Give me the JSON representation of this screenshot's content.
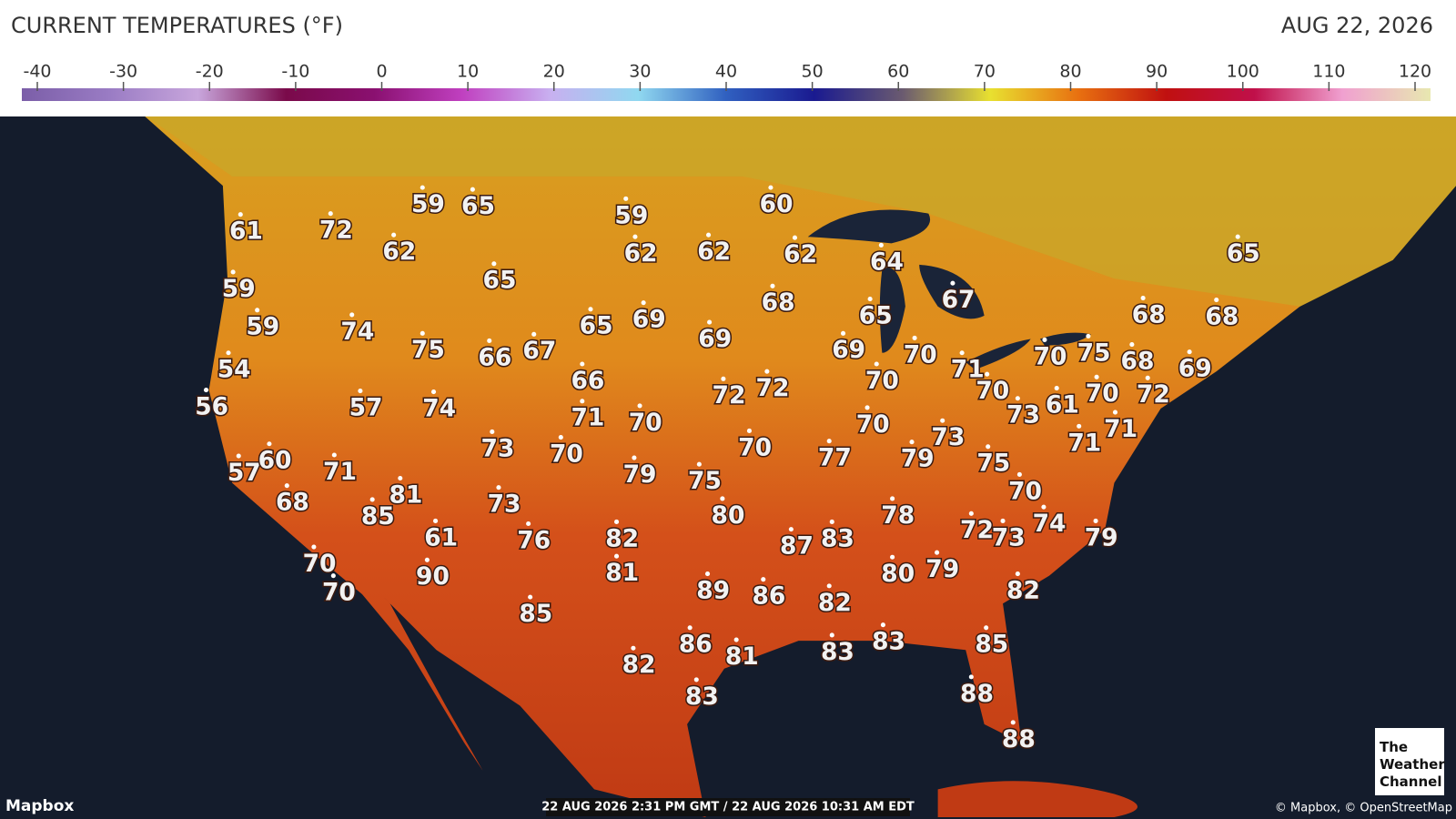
{
  "header": {
    "title": "CURRENT TEMPERATURES (°F)",
    "date": "AUG 22, 2026"
  },
  "colorbar": {
    "ticks": [
      -40,
      -30,
      -20,
      -10,
      0,
      10,
      20,
      30,
      40,
      50,
      60,
      70,
      80,
      90,
      100,
      110,
      120
    ],
    "colors": [
      "#7b5ea8",
      "#9a7cc4",
      "#c8a6dc",
      "#7a0a4a",
      "#8a1070",
      "#c040c0",
      "#c8b0f0",
      "#90d8f0",
      "#3060c0",
      "#1a1a90",
      "#6a5a70",
      "#e8e030",
      "#e87010",
      "#c01010",
      "#c0104a",
      "#f0a0d0",
      "#e8e8b0"
    ]
  },
  "stations": [
    61,
    72,
    59,
    65,
    62,
    59,
    60,
    62,
    62,
    62,
    64,
    65,
    59,
    65,
    68,
    65,
    67,
    68,
    68,
    59,
    74,
    65,
    69,
    69,
    75,
    66,
    67,
    69,
    70,
    71,
    70,
    75,
    68,
    69,
    54,
    56,
    57,
    74,
    66,
    72,
    72,
    70,
    70,
    73,
    61,
    70,
    72,
    71,
    70,
    70,
    73,
    71,
    71,
    73,
    70,
    70,
    77,
    79,
    75,
    57,
    60,
    71,
    79,
    75,
    70,
    81,
    85,
    73,
    80,
    78,
    72,
    73,
    74,
    79,
    68,
    61,
    76,
    82,
    87,
    83,
    70,
    70,
    90,
    81,
    89,
    86,
    82,
    80,
    79,
    82,
    85,
    86,
    81,
    83,
    83,
    85,
    82,
    83,
    88,
    88
  ],
  "footer": {
    "brand": "Mapbox",
    "timestamp": "22 AUG 2026 2:31 PM GMT / 22 AUG 2026 10:31 AM EDT",
    "attribution": "© Mapbox, © OpenStreetMap",
    "logo": [
      "The",
      "Weather",
      "Channel"
    ]
  }
}
